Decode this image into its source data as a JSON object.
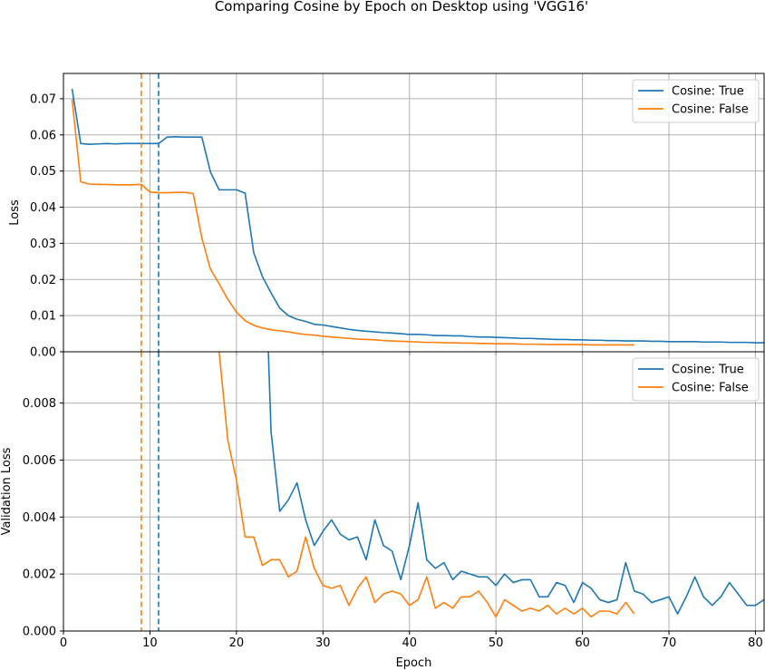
{
  "title": "Comparing Cosine by Epoch on Desktop using 'VGG16'",
  "colors": {
    "true_series": "#1f77b4",
    "false_series": "#ff7f0e"
  },
  "chart_data": [
    {
      "type": "line",
      "panel": "top",
      "ylabel": "Loss",
      "xlim": [
        0,
        81
      ],
      "ylim": [
        0,
        0.077
      ],
      "xticks": [
        "0",
        "10",
        "20",
        "30",
        "40",
        "50",
        "60",
        "70",
        "80"
      ],
      "yticks": [
        "0.00",
        "0.01",
        "0.02",
        "0.03",
        "0.04",
        "0.05",
        "0.06",
        "0.07"
      ],
      "grid": true,
      "legend": {
        "placement": "top-right",
        "entries": [
          "Cosine: True",
          "Cosine: False"
        ]
      },
      "vlines": [
        {
          "x": 9,
          "series": "Cosine: False",
          "style": "dashed"
        },
        {
          "x": 11,
          "series": "Cosine: True",
          "style": "dashed"
        }
      ],
      "series": [
        {
          "name": "Cosine: True",
          "x": [
            1,
            2,
            3,
            4,
            5,
            6,
            7,
            8,
            9,
            10,
            11,
            12,
            13,
            14,
            15,
            16,
            17,
            18,
            19,
            20,
            21,
            22,
            23,
            24,
            25,
            26,
            27,
            28,
            29,
            30,
            31,
            32,
            33,
            34,
            35,
            36,
            37,
            38,
            39,
            40,
            41,
            42,
            43,
            44,
            45,
            46,
            47,
            48,
            49,
            50,
            51,
            52,
            53,
            54,
            55,
            56,
            57,
            58,
            59,
            60,
            61,
            62,
            63,
            64,
            65,
            66,
            67,
            68,
            69,
            70,
            71,
            72,
            73,
            74,
            75,
            76,
            77,
            78,
            79,
            80,
            81
          ],
          "values": [
            0.0727,
            0.0576,
            0.0574,
            0.0575,
            0.0576,
            0.0575,
            0.0576,
            0.0576,
            0.0576,
            0.0576,
            0.0576,
            0.0594,
            0.0595,
            0.0594,
            0.0594,
            0.0594,
            0.0497,
            0.0448,
            0.0448,
            0.0448,
            0.0439,
            0.0274,
            0.0208,
            0.0163,
            0.0121,
            0.01,
            0.009,
            0.0084,
            0.0076,
            0.0074,
            0.007,
            0.0066,
            0.0062,
            0.0059,
            0.0057,
            0.0055,
            0.0053,
            0.0052,
            0.005,
            0.0048,
            0.0048,
            0.0047,
            0.0045,
            0.0045,
            0.0044,
            0.0044,
            0.0042,
            0.0041,
            0.0041,
            0.004,
            0.0039,
            0.0038,
            0.0037,
            0.0037,
            0.0036,
            0.0035,
            0.0034,
            0.0034,
            0.0033,
            0.0033,
            0.0032,
            0.0032,
            0.0031,
            0.0031,
            0.003,
            0.003,
            0.003,
            0.0029,
            0.0029,
            0.0028,
            0.0028,
            0.0028,
            0.0028,
            0.0027,
            0.0027,
            0.0027,
            0.0026,
            0.0026,
            0.0026,
            0.0025,
            0.0025
          ]
        },
        {
          "name": "Cosine: False",
          "x": [
            1,
            2,
            3,
            4,
            5,
            6,
            7,
            8,
            9,
            10,
            11,
            12,
            13,
            14,
            15,
            16,
            17,
            18,
            19,
            20,
            21,
            22,
            23,
            24,
            25,
            26,
            27,
            28,
            29,
            30,
            31,
            32,
            33,
            34,
            35,
            36,
            37,
            38,
            39,
            40,
            41,
            42,
            43,
            44,
            45,
            46,
            47,
            48,
            49,
            50,
            51,
            52,
            53,
            54,
            55,
            56,
            57,
            58,
            59,
            60,
            61,
            62,
            63,
            64,
            65,
            66
          ],
          "values": [
            0.0698,
            0.047,
            0.0464,
            0.0463,
            0.0463,
            0.0462,
            0.0462,
            0.0462,
            0.0463,
            0.0442,
            0.044,
            0.044,
            0.0441,
            0.0441,
            0.0438,
            0.0315,
            0.0228,
            0.0188,
            0.0145,
            0.011,
            0.0086,
            0.0073,
            0.0066,
            0.0061,
            0.0058,
            0.0055,
            0.0051,
            0.0048,
            0.0046,
            0.0043,
            0.0041,
            0.0039,
            0.0037,
            0.0035,
            0.0034,
            0.0033,
            0.0031,
            0.003,
            0.0029,
            0.0028,
            0.0027,
            0.0026,
            0.0026,
            0.0025,
            0.0025,
            0.0024,
            0.0024,
            0.0023,
            0.0023,
            0.0022,
            0.0022,
            0.0022,
            0.0021,
            0.0021,
            0.0021,
            0.002,
            0.002,
            0.002,
            0.002,
            0.002,
            0.0019,
            0.0019,
            0.0019,
            0.0019,
            0.0019,
            0.0019
          ]
        }
      ]
    },
    {
      "type": "line",
      "panel": "bottom",
      "xlabel": "Epoch",
      "ylabel": "Validation Loss",
      "xlim": [
        0,
        81
      ],
      "ylim": [
        0,
        0.0098
      ],
      "xticks": [
        "0",
        "10",
        "20",
        "30",
        "40",
        "50",
        "60",
        "70",
        "80"
      ],
      "yticks": [
        "0.000",
        "0.002",
        "0.004",
        "0.006",
        "0.008"
      ],
      "grid": true,
      "legend": {
        "placement": "top-right",
        "entries": [
          "Cosine: True",
          "Cosine: False"
        ]
      },
      "vlines": [
        {
          "x": 9,
          "series": "Cosine: False",
          "style": "dashed"
        },
        {
          "x": 11,
          "series": "Cosine: True",
          "style": "dashed"
        }
      ],
      "series": [
        {
          "name": "Cosine: True",
          "x": [
            23,
            24,
            25,
            26,
            27,
            28,
            29,
            30,
            31,
            32,
            33,
            34,
            35,
            36,
            37,
            38,
            39,
            40,
            41,
            42,
            43,
            44,
            45,
            46,
            47,
            48,
            49,
            50,
            51,
            52,
            53,
            54,
            55,
            56,
            57,
            58,
            59,
            60,
            61,
            62,
            63,
            64,
            65,
            66,
            67,
            68,
            69,
            70,
            71,
            72,
            73,
            74,
            75,
            76,
            77,
            78,
            79,
            80,
            81
          ],
          "values": [
            0.016,
            0.007,
            0.0042,
            0.0046,
            0.0052,
            0.0039,
            0.003,
            0.0035,
            0.0039,
            0.0034,
            0.0032,
            0.0033,
            0.0025,
            0.0039,
            0.003,
            0.0028,
            0.0018,
            0.003,
            0.0045,
            0.0025,
            0.0022,
            0.0024,
            0.0018,
            0.0021,
            0.002,
            0.0019,
            0.0019,
            0.0016,
            0.002,
            0.0017,
            0.0018,
            0.0018,
            0.0012,
            0.0012,
            0.0017,
            0.0016,
            0.001,
            0.0017,
            0.0015,
            0.0011,
            0.001,
            0.0011,
            0.0024,
            0.0014,
            0.0013,
            0.001,
            0.0011,
            0.0012,
            0.0006,
            0.0012,
            0.0019,
            0.0012,
            0.0009,
            0.0012,
            0.0017,
            0.0013,
            0.0009,
            0.0009,
            0.0011
          ]
        },
        {
          "name": "Cosine: False",
          "x": [
            17,
            18,
            19,
            20,
            21,
            22,
            23,
            24,
            25,
            26,
            27,
            28,
            29,
            30,
            31,
            32,
            33,
            34,
            35,
            36,
            37,
            38,
            39,
            40,
            41,
            42,
            43,
            44,
            45,
            46,
            47,
            48,
            49,
            50,
            51,
            52,
            53,
            54,
            55,
            56,
            57,
            58,
            59,
            60,
            61,
            62,
            63,
            64,
            65,
            66
          ],
          "values": [
            0.015,
            0.0098,
            0.0067,
            0.0053,
            0.0033,
            0.0033,
            0.0023,
            0.0025,
            0.0025,
            0.0019,
            0.0021,
            0.0033,
            0.0022,
            0.0016,
            0.0015,
            0.0016,
            0.0009,
            0.0015,
            0.0019,
            0.001,
            0.0013,
            0.0014,
            0.0013,
            0.0009,
            0.0011,
            0.0019,
            0.0008,
            0.001,
            0.0008,
            0.0012,
            0.0012,
            0.0014,
            0.001,
            0.0005,
            0.0011,
            0.0009,
            0.0007,
            0.0008,
            0.0007,
            0.0009,
            0.0006,
            0.0008,
            0.0006,
            0.0008,
            0.0005,
            0.0007,
            0.0007,
            0.0006,
            0.001,
            0.0006
          ]
        }
      ]
    }
  ]
}
